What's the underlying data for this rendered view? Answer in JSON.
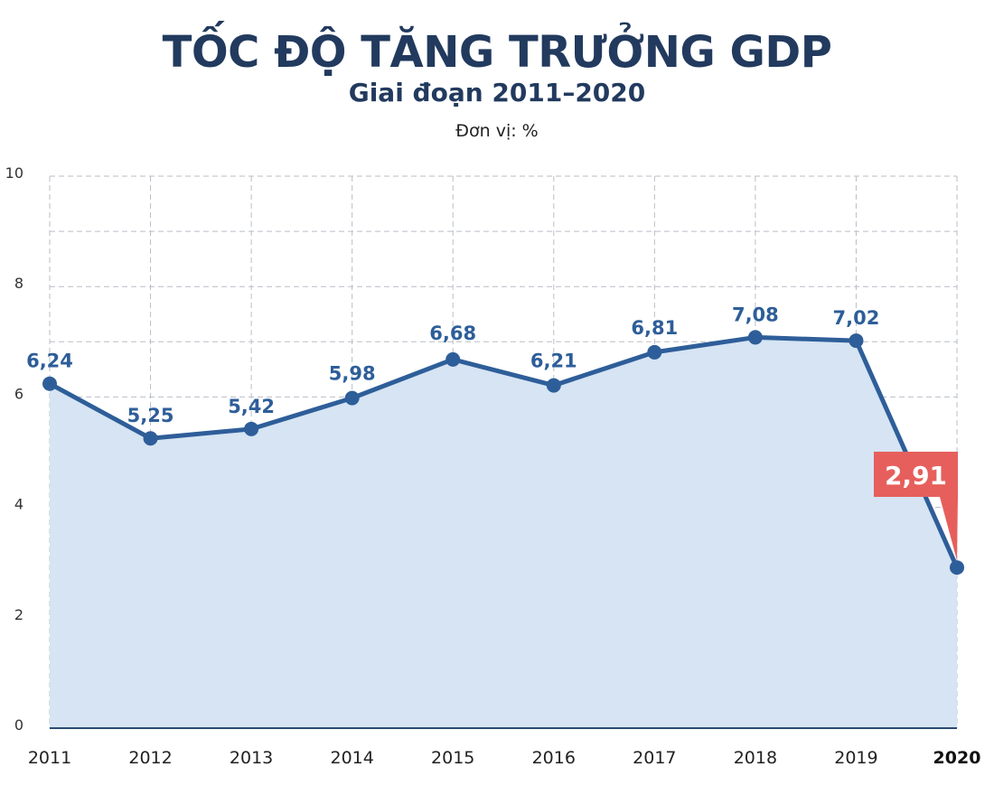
{
  "header": {
    "title": "TỐC ĐỘ TĂNG TRƯỞNG GDP",
    "subtitle": "Giai đoạn 2011–2020",
    "unit": "Đơn vị: %"
  },
  "colors": {
    "title": "#223a5e",
    "line": "#2e5e99",
    "fill": "#d6e4f3",
    "grid": "#b9bec6",
    "callout": "#e65f5c",
    "axis": "#2a4a70"
  },
  "chart_data": {
    "type": "area",
    "title": "TỐC ĐỘ TĂNG TRƯỞNG GDP",
    "subtitle": "Giai đoạn 2011–2020",
    "unit": "Đơn vị: %",
    "xlabel": "",
    "ylabel": "",
    "categories": [
      "2011",
      "2012",
      "2013",
      "2014",
      "2015",
      "2016",
      "2017",
      "2018",
      "2019",
      "2020"
    ],
    "series": [
      {
        "name": "Tốc độ tăng trưởng GDP",
        "values": [
          6.24,
          5.25,
          5.42,
          5.98,
          6.68,
          6.21,
          6.81,
          7.08,
          7.02,
          2.91
        ],
        "labels": [
          "6,24",
          "5,25",
          "5,42",
          "5,98",
          "6,68",
          "6,21",
          "6,81",
          "7,08",
          "7,02",
          "2,91"
        ]
      }
    ],
    "ylim": [
      0,
      10
    ],
    "yticks": [
      0,
      2,
      4,
      6,
      8,
      10
    ],
    "grid": true,
    "grid_style": "dashed",
    "highlight": {
      "category": "2020",
      "label": "2,91",
      "style": "red callout box"
    },
    "legend": null
  }
}
